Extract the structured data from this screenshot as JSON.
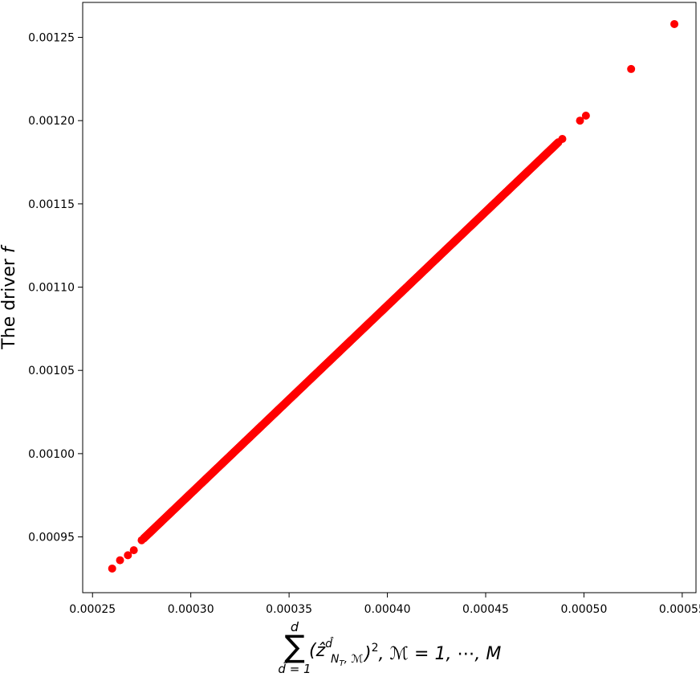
{
  "chart_data": {
    "type": "scatter",
    "title": "",
    "xlabel": {
      "sum_symbol": "∑",
      "upper_limit": "d",
      "lower_limit": "d̂ = 1",
      "summand": "(ẑ",
      "summand_superscript": "d̂",
      "summand_subscript": "N",
      "summand_subscript_sub": "T",
      "summand_subscript_rest": ", ℳ",
      "close": ")",
      "power": "2",
      "rest": ", ℳ = 1, ⋯, M"
    },
    "ylabel": "The driver f",
    "ylabel_prefix": "The driver ",
    "ylabel_italic": "f",
    "xlim": [
      0.000245,
      0.000557
    ],
    "ylim": [
      0.0009165,
      0.001271
    ],
    "xticks": [
      0.00025,
      0.0003,
      0.00035,
      0.0004,
      0.00045,
      0.0005,
      0.00055
    ],
    "xtick_labels": [
      "0.00025",
      "0.00030",
      "0.00035",
      "0.00040",
      "0.00045",
      "0.00050",
      "0.00055"
    ],
    "yticks": [
      0.00095,
      0.001,
      0.00105,
      0.0011,
      0.00115,
      0.0012,
      0.00125
    ],
    "ytick_labels": [
      "0.00095",
      "0.00100",
      "0.00105",
      "0.00110",
      "0.00115",
      "0.00120",
      "0.00125"
    ],
    "grid": false,
    "marker_color": "#ff0000",
    "series": [
      {
        "points": [
          [
            0.00026,
            0.000931
          ],
          [
            0.000264,
            0.000936
          ],
          [
            0.000268,
            0.000939
          ],
          [
            0.000271,
            0.000942
          ],
          [
            0.000275,
            0.000948
          ],
          [
            0.000489,
            0.001189
          ],
          [
            0.000498,
            0.0012
          ],
          [
            0.000501,
            0.001203
          ],
          [
            0.000524,
            0.001231
          ],
          [
            0.000546,
            0.001258
          ]
        ],
        "dense_segment": {
          "x_start": 0.000276,
          "y_start": 0.000949,
          "x_end": 0.000487,
          "y_end": 0.001187,
          "count": 1500
        }
      }
    ]
  }
}
